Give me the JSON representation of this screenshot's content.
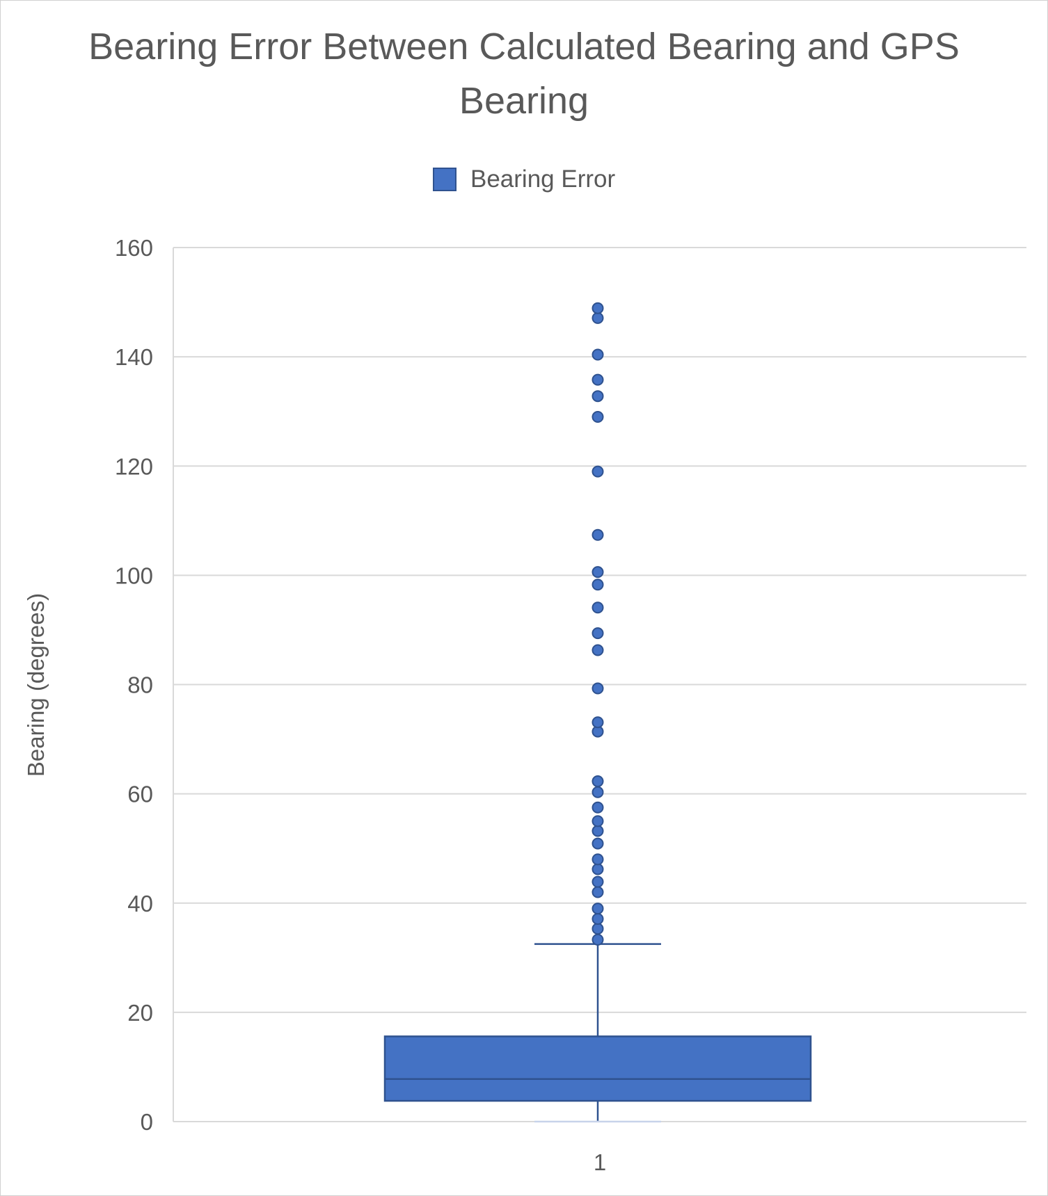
{
  "chart_data": {
    "type": "box",
    "title": "Bearing Error Between Calculated Bearing and GPS Bearing",
    "title_lines": [
      "Bearing Error Between Calculated Bearing and GPS",
      "Bearing"
    ],
    "ylabel": "Bearing (degrees)",
    "xlabel": "",
    "ylim": [
      0,
      160
    ],
    "y_ticks": [
      0,
      20,
      40,
      60,
      80,
      100,
      120,
      140,
      160
    ],
    "categories": [
      "1"
    ],
    "legend": {
      "position": "top",
      "entries": [
        "Bearing Error"
      ]
    },
    "grid": true,
    "series": [
      {
        "name": "Bearing Error",
        "color": "#4472c4",
        "min": 0,
        "q1": 3.8,
        "median": 7.8,
        "q3": 15.6,
        "whisker_high": 32.5,
        "outliers": [
          33.3,
          35.3,
          37.1,
          39.0,
          42.0,
          43.9,
          46.2,
          48.0,
          50.9,
          53.2,
          55.0,
          57.5,
          60.3,
          62.3,
          71.4,
          73.1,
          79.3,
          86.3,
          89.4,
          94.1,
          98.3,
          100.6,
          107.4,
          119.0,
          129.0,
          132.8,
          135.8,
          140.4,
          147.1,
          148.9
        ]
      }
    ]
  }
}
